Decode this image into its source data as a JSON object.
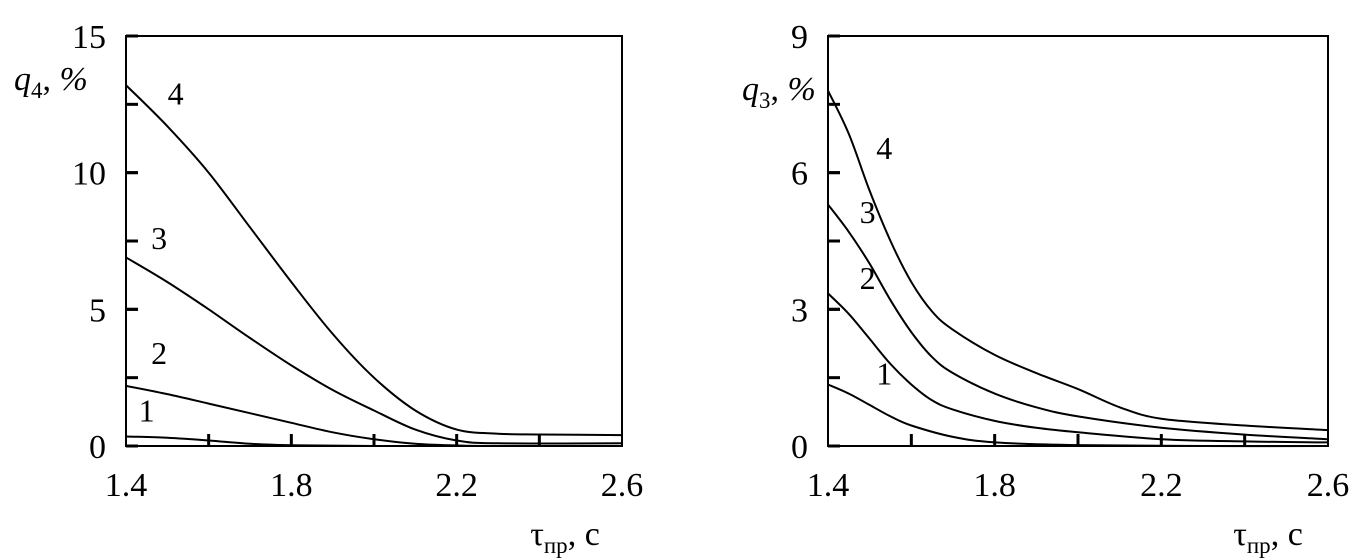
{
  "chart_data": [
    {
      "type": "line",
      "ylabel": {
        "var": "q",
        "sub": "4",
        "unit": ", %"
      },
      "xlabel": {
        "var": "τ",
        "sub": "пр",
        "unit": ", с"
      },
      "xlim": [
        1.4,
        2.6
      ],
      "ylim": [
        0,
        15
      ],
      "x_ticks": [
        "1.4",
        "1.8",
        "2.2",
        "2.6"
      ],
      "y_ticks": [
        "0",
        "5",
        "10",
        "15"
      ],
      "series": [
        {
          "name": "1",
          "x": [
            1.4,
            1.5,
            1.6,
            1.7,
            1.8,
            2.0,
            2.3,
            2.6
          ],
          "y": [
            0.35,
            0.3,
            0.2,
            0.08,
            0.03,
            0.0,
            0.0,
            0.0
          ]
        },
        {
          "name": "2",
          "x": [
            1.4,
            1.5,
            1.6,
            1.7,
            1.8,
            1.9,
            2.0,
            2.1,
            2.2,
            2.3,
            2.6
          ],
          "y": [
            2.2,
            1.9,
            1.55,
            1.2,
            0.85,
            0.5,
            0.25,
            0.08,
            0.02,
            0.0,
            0.0
          ]
        },
        {
          "name": "3",
          "x": [
            1.4,
            1.5,
            1.6,
            1.7,
            1.8,
            1.9,
            2.0,
            2.1,
            2.2,
            2.3,
            2.6
          ],
          "y": [
            6.9,
            6.0,
            5.0,
            3.95,
            2.95,
            2.05,
            1.3,
            0.6,
            0.2,
            0.1,
            0.1
          ]
        },
        {
          "name": "4",
          "x": [
            1.4,
            1.5,
            1.6,
            1.7,
            1.8,
            1.9,
            2.0,
            2.1,
            2.2,
            2.3,
            2.4,
            2.6
          ],
          "y": [
            13.2,
            11.7,
            10.0,
            8.0,
            6.0,
            4.1,
            2.5,
            1.3,
            0.6,
            0.45,
            0.42,
            0.4
          ]
        }
      ],
      "labels": [
        {
          "text": "1",
          "x": 1.45,
          "y": 0.9
        },
        {
          "text": "2",
          "x": 1.48,
          "y": 3.0
        },
        {
          "text": "3",
          "x": 1.48,
          "y": 7.2
        },
        {
          "text": "4",
          "x": 1.52,
          "y": 12.5
        }
      ]
    },
    {
      "type": "line",
      "ylabel": {
        "var": "q",
        "sub": "3",
        "unit": ", %"
      },
      "xlabel": {
        "var": "τ",
        "sub": "пр",
        "unit": ", с"
      },
      "xlim": [
        1.4,
        2.6
      ],
      "ylim": [
        0,
        9
      ],
      "x_ticks": [
        "1.4",
        "1.8",
        "2.2",
        "2.6"
      ],
      "y_ticks": [
        "0",
        "3",
        "6",
        "9"
      ],
      "series": [
        {
          "name": "1",
          "x": [
            1.4,
            1.45,
            1.5,
            1.55,
            1.6,
            1.7,
            1.8,
            2.0,
            2.3,
            2.6
          ],
          "y": [
            1.35,
            1.15,
            0.9,
            0.65,
            0.45,
            0.2,
            0.08,
            0.02,
            0.0,
            0.0
          ]
        },
        {
          "name": "2",
          "x": [
            1.4,
            1.45,
            1.5,
            1.55,
            1.6,
            1.65,
            1.7,
            1.8,
            1.9,
            2.0,
            2.2,
            2.4,
            2.6
          ],
          "y": [
            3.35,
            2.9,
            2.35,
            1.8,
            1.35,
            1.0,
            0.8,
            0.55,
            0.4,
            0.3,
            0.15,
            0.1,
            0.08
          ]
        },
        {
          "name": "3",
          "x": [
            1.4,
            1.45,
            1.5,
            1.55,
            1.6,
            1.65,
            1.7,
            1.8,
            1.9,
            2.0,
            2.2,
            2.4,
            2.6
          ],
          "y": [
            5.3,
            4.7,
            4.0,
            3.2,
            2.5,
            1.95,
            1.6,
            1.15,
            0.85,
            0.65,
            0.4,
            0.25,
            0.15
          ]
        },
        {
          "name": "4",
          "x": [
            1.4,
            1.45,
            1.5,
            1.55,
            1.6,
            1.65,
            1.7,
            1.8,
            1.9,
            2.0,
            2.1,
            2.2,
            2.4,
            2.6
          ],
          "y": [
            7.8,
            6.85,
            5.6,
            4.5,
            3.6,
            2.95,
            2.55,
            2.0,
            1.6,
            1.25,
            0.85,
            0.6,
            0.45,
            0.35
          ]
        }
      ],
      "labels": [
        {
          "text": "1",
          "x": 1.535,
          "y": 1.35
        },
        {
          "text": "2",
          "x": 1.495,
          "y": 3.45
        },
        {
          "text": "3",
          "x": 1.495,
          "y": 4.9
        },
        {
          "text": "4",
          "x": 1.535,
          "y": 6.3
        }
      ]
    }
  ]
}
